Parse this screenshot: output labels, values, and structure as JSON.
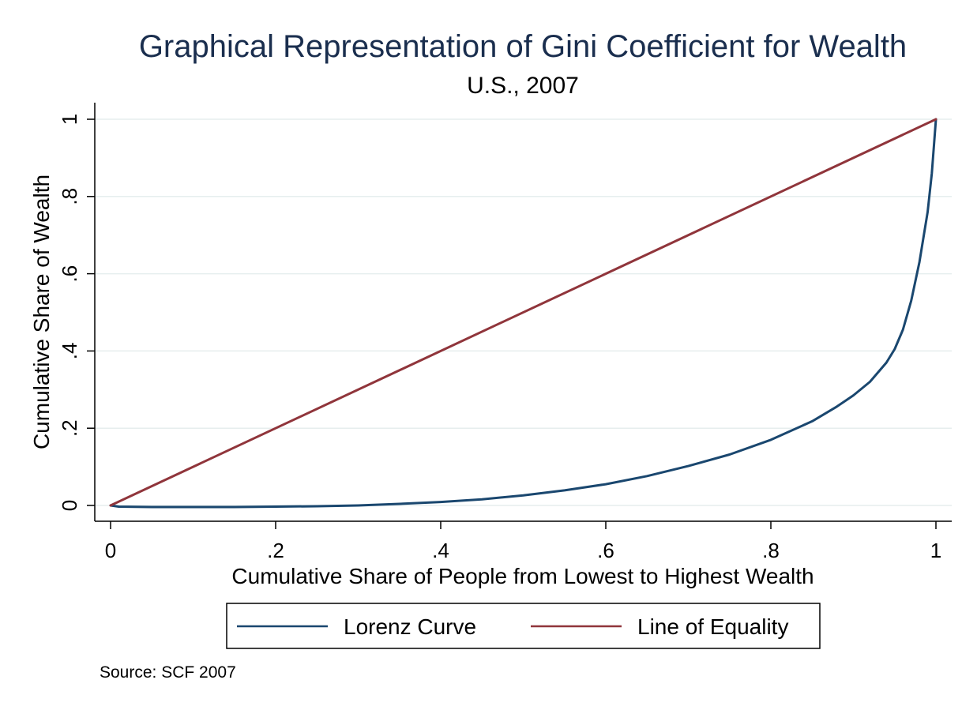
{
  "chart_data": {
    "type": "line",
    "title": "Graphical Representation of Gini Coefficient for Wealth",
    "subtitle": "U.S., 2007",
    "xlabel": "Cumulative Share of People from Lowest to Highest Wealth",
    "ylabel": "Cumulative Share of Wealth",
    "note": "Source: SCF 2007",
    "xlim": [
      0,
      1
    ],
    "ylim": [
      0,
      1
    ],
    "x_ticks": [
      0,
      0.2,
      0.4,
      0.6,
      0.8,
      1
    ],
    "x_tick_labels": [
      "0",
      ".2",
      ".4",
      ".6",
      ".8",
      "1"
    ],
    "y_ticks": [
      0,
      0.2,
      0.4,
      0.6,
      0.8,
      1
    ],
    "y_tick_labels": [
      "0",
      ".2",
      ".4",
      ".6",
      ".8",
      "1"
    ],
    "grid": "horizontal",
    "legend_position": "bottom",
    "series": [
      {
        "name": "Lorenz Curve",
        "color": "#1a476f",
        "points": [
          [
            0,
            0
          ],
          [
            0.01,
            -0.003
          ],
          [
            0.05,
            -0.004
          ],
          [
            0.1,
            -0.004
          ],
          [
            0.15,
            -0.004
          ],
          [
            0.2,
            -0.003
          ],
          [
            0.25,
            -0.002
          ],
          [
            0.3,
            0.0
          ],
          [
            0.35,
            0.004
          ],
          [
            0.4,
            0.009
          ],
          [
            0.45,
            0.016
          ],
          [
            0.5,
            0.026
          ],
          [
            0.55,
            0.039
          ],
          [
            0.6,
            0.055
          ],
          [
            0.65,
            0.076
          ],
          [
            0.7,
            0.102
          ],
          [
            0.75,
            0.132
          ],
          [
            0.8,
            0.17
          ],
          [
            0.85,
            0.218
          ],
          [
            0.88,
            0.256
          ],
          [
            0.9,
            0.285
          ],
          [
            0.92,
            0.32
          ],
          [
            0.94,
            0.37
          ],
          [
            0.95,
            0.405
          ],
          [
            0.96,
            0.455
          ],
          [
            0.97,
            0.53
          ],
          [
            0.98,
            0.63
          ],
          [
            0.99,
            0.76
          ],
          [
            0.995,
            0.86
          ],
          [
            1.0,
            1.0
          ]
        ]
      },
      {
        "name": "Line of Equality",
        "color": "#90353b",
        "points": [
          [
            0,
            0
          ],
          [
            1,
            1
          ]
        ]
      }
    ]
  }
}
